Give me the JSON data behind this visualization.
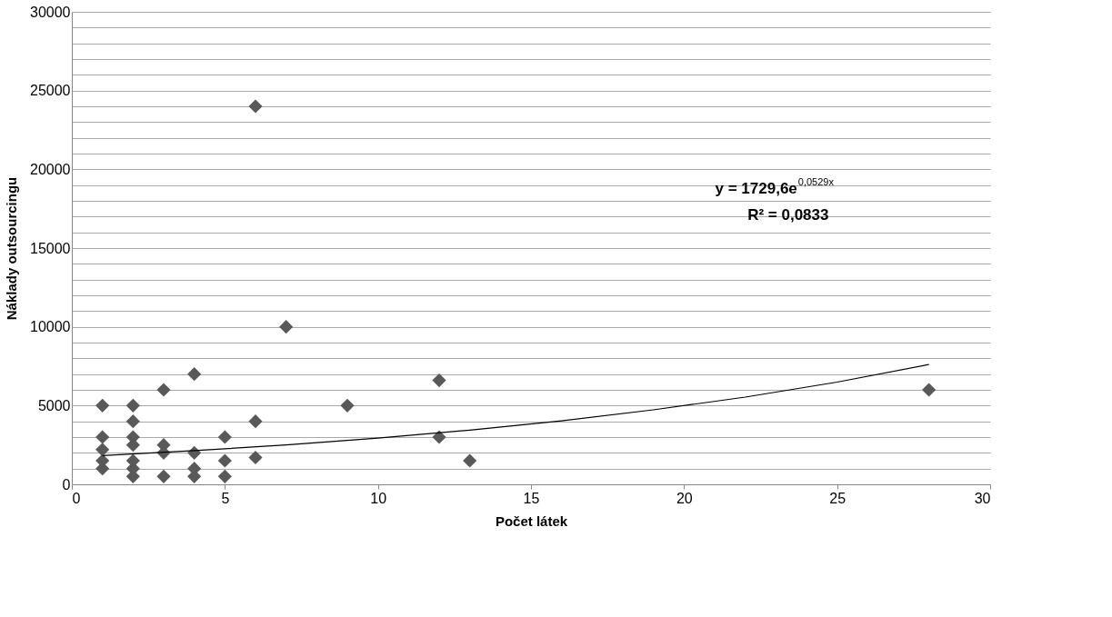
{
  "chart_data": {
    "type": "scatter",
    "xlabel": "Počet látek",
    "ylabel": "Náklady outsourcingu",
    "annotations": [
      "y = 1729,6e$^{0,0529x}$",
      "R² = 0,0833"
    ],
    "xlim": [
      0,
      30
    ],
    "xticks": [
      0,
      5,
      10,
      15,
      20,
      25,
      30
    ],
    "ylim": [
      0,
      30000
    ],
    "yticks": [
      0,
      {
        "value": 1000,
        "label": null
      },
      {
        "value": 2000,
        "label": null
      },
      {
        "value": 3000,
        "label": null
      },
      {
        "value": 4000,
        "label": null
      },
      5000,
      {
        "value": 6000,
        "label": null
      },
      {
        "value": 7000,
        "label": null
      },
      {
        "value": 8000,
        "label": null
      },
      {
        "value": 9000,
        "label": null
      },
      10000,
      {
        "value": 11000,
        "label": null
      },
      {
        "value": 12000,
        "label": null
      },
      {
        "value": 13000,
        "label": null
      },
      {
        "value": 14000,
        "label": null
      },
      15000,
      {
        "value": 16000,
        "label": null
      },
      {
        "value": 17000,
        "label": null
      },
      {
        "value": 18000,
        "label": null
      },
      {
        "value": 19000,
        "label": null
      },
      20000,
      {
        "value": 21000,
        "label": null
      },
      {
        "value": 22000,
        "label": null
      },
      {
        "value": 23000,
        "label": null
      },
      {
        "value": 24000,
        "label": null
      },
      25000,
      {
        "value": 26000,
        "label": null
      },
      {
        "value": 27000,
        "label": null
      },
      {
        "value": 28000,
        "label": null
      },
      {
        "value": 29000,
        "label": null
      },
      30000
    ],
    "grid": "y",
    "marker": "diamond",
    "series": [
      {
        "color": "#595959",
        "x": [
          1,
          1,
          1,
          1,
          1,
          2,
          2,
          2,
          2,
          2,
          2,
          2,
          3,
          3,
          3,
          3,
          4,
          4,
          4,
          4,
          5,
          5,
          5,
          6,
          6,
          6,
          7,
          9,
          12,
          12,
          13,
          28
        ],
        "values": [
          5000,
          3000,
          2200,
          1500,
          1000,
          5000,
          4000,
          3000,
          2500,
          1500,
          1000,
          500,
          6000,
          2500,
          2000,
          500,
          7000,
          2000,
          1000,
          500,
          3000,
          1500,
          500,
          24000,
          4000,
          1700,
          10000,
          5000,
          6600,
          3000,
          1500,
          6000
        ]
      },
      {
        "type": "line",
        "color": "#000000",
        "marker": "none",
        "line_style": "solid",
        "x": [
          1,
          4,
          7,
          10,
          13,
          16,
          19,
          22,
          25,
          28
        ],
        "values": [
          1820,
          2140,
          2500,
          2940,
          3440,
          4030,
          4730,
          5540,
          6490,
          7610
        ]
      }
    ]
  }
}
